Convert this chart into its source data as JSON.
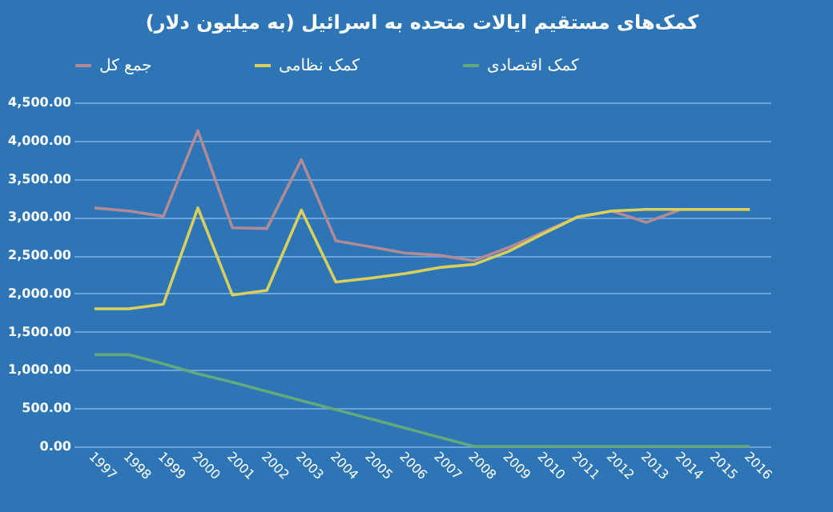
{
  "chart_data": {
    "type": "line",
    "title": "کمک‌های مستقیم ایالات متحده به اسرائیل (به میلیون دلار)",
    "categories": [
      "1997",
      "1998",
      "1999",
      "2000",
      "2001",
      "2002",
      "2003",
      "2004",
      "2005",
      "2006",
      "2007",
      "2008",
      "2009",
      "2010",
      "2011",
      "2012",
      "2013",
      "2014",
      "2015",
      "2016"
    ],
    "series": [
      {
        "name": "جمع کل",
        "color": "#b08a96",
        "values": [
          3120,
          3080,
          3010,
          4130,
          2860,
          2850,
          3750,
          2690,
          2610,
          2530,
          2500,
          2430,
          2600,
          2800,
          3000,
          3080,
          2930,
          3100,
          3100,
          3100
        ]
      },
      {
        "name": "کمک نظامی",
        "color": "#d9cf5c",
        "values": [
          1800,
          1800,
          1860,
          3120,
          1980,
          2040,
          3090,
          2150,
          2200,
          2260,
          2340,
          2380,
          2550,
          2780,
          3000,
          3080,
          3100,
          3100,
          3100,
          3100
        ]
      },
      {
        "name": "کمک اقتصادی",
        "color": "#62a97e",
        "values": [
          1200,
          1200,
          1080,
          950,
          840,
          720,
          600,
          480,
          360,
          240,
          120,
          0,
          0,
          0,
          0,
          0,
          0,
          0,
          0,
          0
        ]
      }
    ],
    "ylim": [
      0,
      4500
    ],
    "yticks": [
      {
        "value": 0,
        "label": "0.00"
      },
      {
        "value": 500,
        "label": "500.00"
      },
      {
        "value": 1000,
        "label": "1,000.00"
      },
      {
        "value": 1500,
        "label": "1,500.00"
      },
      {
        "value": 2000,
        "label": "2,000.00"
      },
      {
        "value": 2500,
        "label": "2,500.00"
      },
      {
        "value": 3000,
        "label": "3,000.00"
      },
      {
        "value": 3500,
        "label": "3,500.00"
      },
      {
        "value": 4000,
        "label": "4,000.00"
      },
      {
        "value": 4500,
        "label": "4,500.00"
      }
    ],
    "grid": "y",
    "legend": "top",
    "marker": "none",
    "line_style": "solid"
  }
}
